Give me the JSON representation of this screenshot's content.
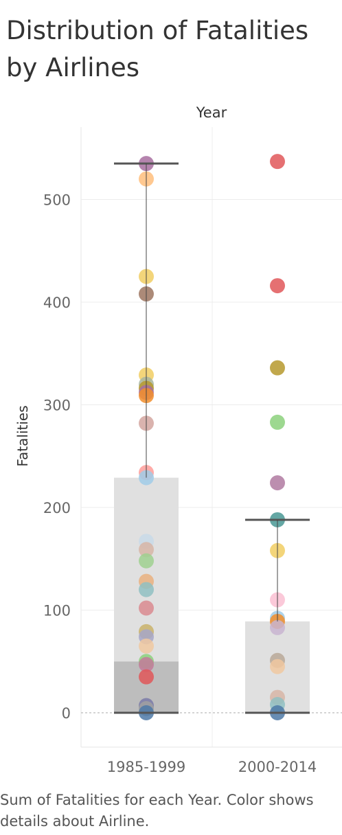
{
  "title": "Distribution of Fatalities by Airlines",
  "caption": "Sum of Fatalities for each Year.  Color shows details about Airline.",
  "chart_data": {
    "type": "scatter",
    "column_header": "Year",
    "ylabel": "Fatalities",
    "ylim": [
      -35,
      570
    ],
    "yticks": [
      0,
      100,
      200,
      300,
      400,
      500
    ],
    "grid": true,
    "categories": [
      "1985-1999",
      "2000-2014"
    ],
    "groups": [
      {
        "category": "1985-1999",
        "box": {
          "q1": 0,
          "median": 50,
          "q3": 229,
          "whisker_low": 0,
          "whisker_high": 535
        },
        "points": [
          {
            "value": 535,
            "color": "#a86fa0"
          },
          {
            "value": 520,
            "color": "#ffbe7d"
          },
          {
            "value": 425,
            "color": "#f1ce63"
          },
          {
            "value": 408,
            "color": "#9d7660"
          },
          {
            "value": 329,
            "color": "#f1ce63"
          },
          {
            "value": 320,
            "color": "#a9b6a0"
          },
          {
            "value": 316,
            "color": "#b6992d"
          },
          {
            "value": 312,
            "color": "#a86fa0"
          },
          {
            "value": 309,
            "color": "#f28e2b"
          },
          {
            "value": 282,
            "color": "#d4a6a0"
          },
          {
            "value": 234,
            "color": "#ff9d9a"
          },
          {
            "value": 229,
            "color": "#a0cbe8"
          },
          {
            "value": 167,
            "color": "#c8d9e8"
          },
          {
            "value": 159,
            "color": "#d7b5a6"
          },
          {
            "value": 148,
            "color": "#9fd08f"
          },
          {
            "value": 128,
            "color": "#e9b07f"
          },
          {
            "value": 120,
            "color": "#8fbfc2"
          },
          {
            "value": 102,
            "color": "#d98a8f"
          },
          {
            "value": 79,
            "color": "#c9b26a"
          },
          {
            "value": 74,
            "color": "#a6a6c8"
          },
          {
            "value": 65,
            "color": "#f0c8a0"
          },
          {
            "value": 50,
            "color": "#8cd17d"
          },
          {
            "value": 47,
            "color": "#c37a9a"
          },
          {
            "value": 35,
            "color": "#e15759"
          },
          {
            "value": 7,
            "color": "#7a7aa8"
          },
          {
            "value": 4,
            "color": "#a0a0a0"
          },
          {
            "value": 0,
            "color": "#4e79a7"
          }
        ]
      },
      {
        "category": "2000-2014",
        "box": {
          "q1": 0,
          "median": 0,
          "q3": 89,
          "whisker_low": 0,
          "whisker_high": 188
        },
        "points": [
          {
            "value": 537,
            "color": "#e15759"
          },
          {
            "value": 416,
            "color": "#e15759"
          },
          {
            "value": 336,
            "color": "#b6992d"
          },
          {
            "value": 283,
            "color": "#8cd17d"
          },
          {
            "value": 224,
            "color": "#b07aa1"
          },
          {
            "value": 188,
            "color": "#499894"
          },
          {
            "value": 158,
            "color": "#f1ce63"
          },
          {
            "value": 110,
            "color": "#fabfd2"
          },
          {
            "value": 92,
            "color": "#a0cbe8"
          },
          {
            "value": 89,
            "color": "#f28e2b"
          },
          {
            "value": 83,
            "color": "#c8b4d0"
          },
          {
            "value": 51,
            "color": "#b8a898"
          },
          {
            "value": 45,
            "color": "#f0c8a0"
          },
          {
            "value": 15,
            "color": "#d7b5a6"
          },
          {
            "value": 8,
            "color": "#8fbfc2"
          },
          {
            "value": 0,
            "color": "#4e79a7"
          }
        ]
      }
    ]
  }
}
